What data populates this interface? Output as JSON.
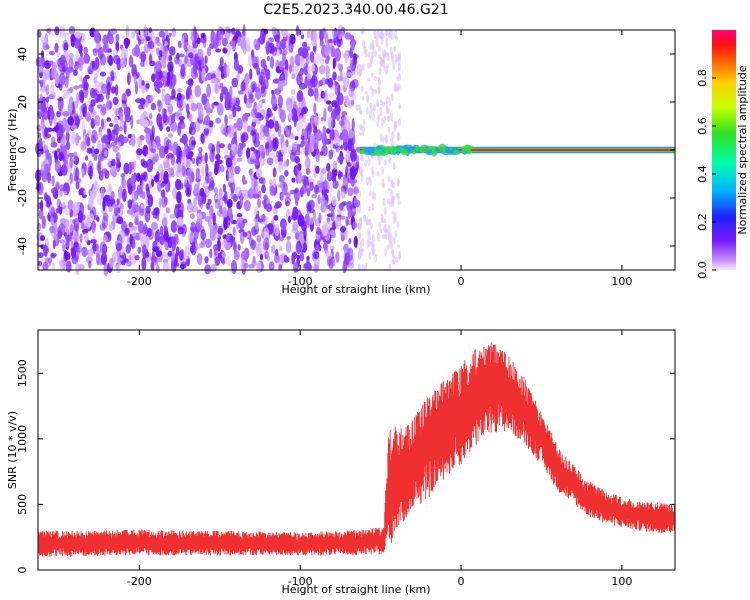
{
  "title": "C2E5.2023.340.00.46.G21",
  "colors": {
    "spectrogram_noise": "#7a1cff",
    "signal_core": "#ff2020",
    "signal_edge": "#1a9bff",
    "snr_line": "#f03030"
  },
  "chart_data": [
    {
      "type": "heatmap",
      "xlabel": "Height of straight line (km)",
      "ylabel": "Frequency (Hz)",
      "xlim": [
        -263,
        133
      ],
      "ylim": [
        -50,
        50
      ],
      "xticks": [
        -200,
        -100,
        0,
        100
      ],
      "yticks": [
        -40,
        -20,
        0,
        20,
        40
      ],
      "colorbar": {
        "label": "Normalized spectral amplitude",
        "range": [
          0,
          1
        ],
        "ticks": [
          0.0,
          0.2,
          0.4,
          0.6,
          0.8
        ]
      },
      "regions": [
        {
          "x_range": [
            -263,
            -63
          ],
          "frequency_range": [
            -50,
            50
          ],
          "normalized_amplitude": 0.2
        },
        {
          "x_range": [
            -63,
            133
          ],
          "frequency_center": 0,
          "normalized_amplitude": 1.0
        }
      ]
    },
    {
      "type": "line",
      "xlabel": "Height of straight line (km)",
      "ylabel": "SNR (10 * v/v)",
      "xlim": [
        -263,
        133
      ],
      "ylim": [
        0,
        1830
      ],
      "xticks": [
        -200,
        -100,
        0,
        100
      ],
      "yticks": [
        0,
        500,
        1000,
        1500
      ],
      "series": [
        {
          "x": [
            -263,
            -240,
            -200,
            -150,
            -100,
            -70,
            -48,
            -45,
            -40,
            -30,
            -20,
            -10,
            0,
            10,
            20,
            30,
            40,
            50,
            60,
            70,
            80,
            90,
            100,
            110,
            120,
            133
          ],
          "y_min": [
            100,
            100,
            110,
            110,
            110,
            110,
            120,
            150,
            300,
            450,
            550,
            700,
            800,
            950,
            1050,
            1050,
            950,
            800,
            600,
            500,
            400,
            350,
            320,
            300,
            280,
            280
          ],
          "y_max": [
            300,
            300,
            310,
            300,
            290,
            300,
            330,
            1100,
            1100,
            1150,
            1350,
            1450,
            1600,
            1700,
            1750,
            1650,
            1450,
            1200,
            950,
            800,
            680,
            600,
            560,
            530,
            520,
            500
          ]
        }
      ]
    }
  ]
}
